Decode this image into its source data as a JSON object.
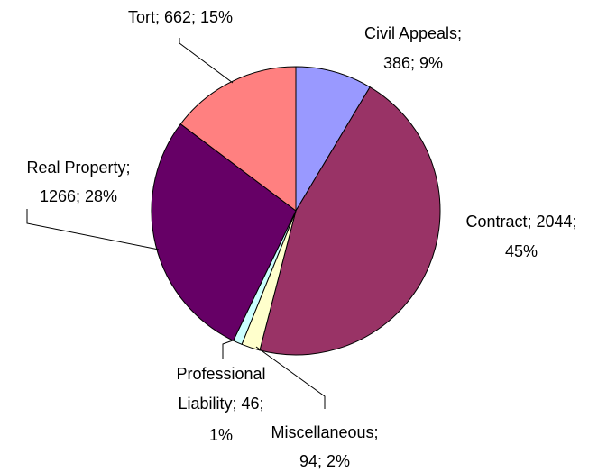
{
  "chart_data": {
    "type": "pie",
    "values": [
      386,
      2044,
      94,
      46,
      1266,
      662
    ],
    "value_labels": [
      [
        "Civil Appeals;",
        "386; 9%"
      ],
      [
        "Contract; 2044;",
        "45%"
      ],
      [
        "Miscellaneous;",
        "94; 2%"
      ],
      [
        "Professional",
        "Liability; 46;",
        "1%"
      ],
      [
        "Real Property;",
        "1266; 28%"
      ],
      [
        "Tort; 662; 15%"
      ]
    ],
    "colors": [
      "#9999ff",
      "#993366",
      "#ffffcc",
      "#ccffff",
      "#660066",
      "#ff8080"
    ]
  }
}
